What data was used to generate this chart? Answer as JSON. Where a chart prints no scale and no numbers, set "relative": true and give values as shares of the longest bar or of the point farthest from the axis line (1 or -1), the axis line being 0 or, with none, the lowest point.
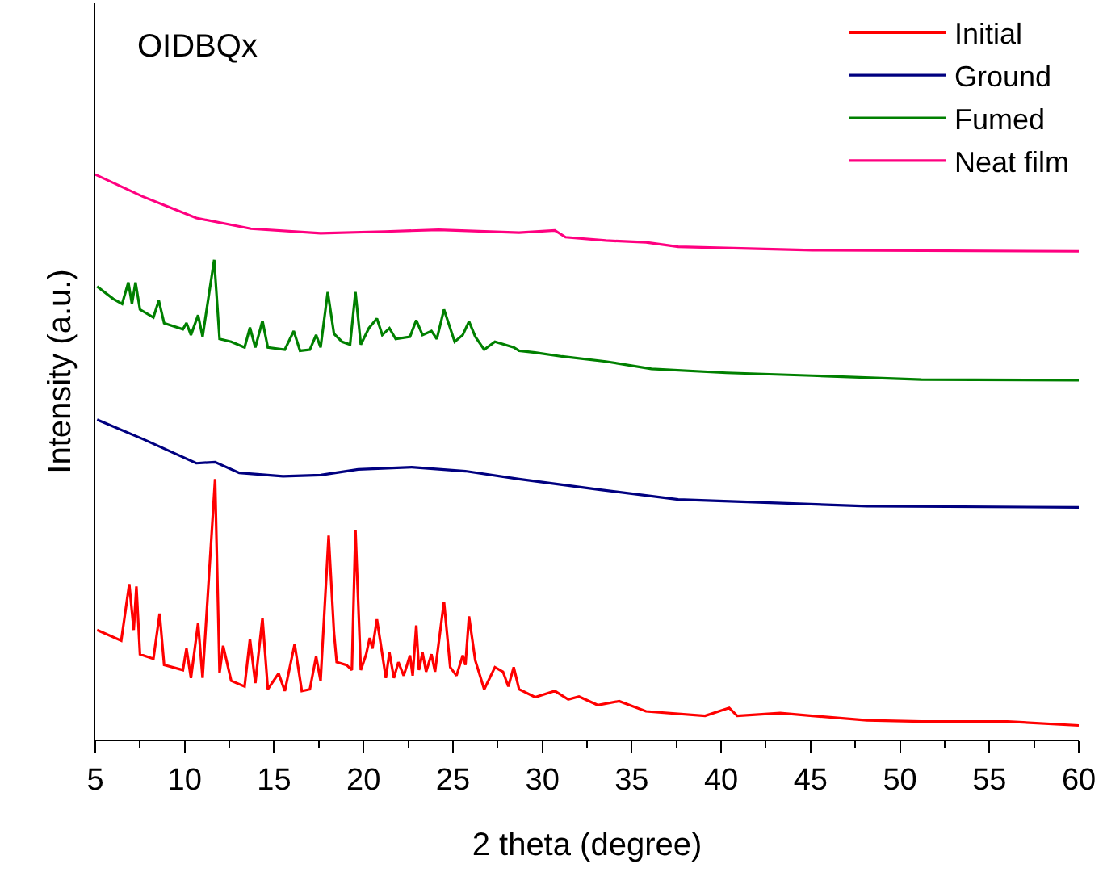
{
  "chart_data": {
    "type": "line",
    "relative": true,
    "xlabel": "2 theta (degree)",
    "ylabel": "Intensity (a.u.)",
    "annotations": [
      "OIDBQx"
    ],
    "xlim": [
      5,
      60
    ],
    "xticks": [
      5,
      {
        "value": 7.5,
        "label": null
      },
      10,
      {
        "value": 12.5,
        "label": null
      },
      15,
      {
        "value": 17.5,
        "label": null
      },
      20,
      {
        "value": 22.5,
        "label": null
      },
      25,
      {
        "value": 27.5,
        "label": null
      },
      30,
      {
        "value": 32.5,
        "label": null
      },
      35,
      {
        "value": 37.5,
        "label": null
      },
      40,
      {
        "value": 42.5,
        "label": null
      },
      45,
      {
        "value": 47.5,
        "label": null
      },
      50,
      {
        "value": 52.5,
        "label": null
      },
      55,
      {
        "value": 57.5,
        "label": null
      },
      60
    ],
    "tick_labels": "x",
    "legend": "top right",
    "marker": "none",
    "line_style": "solid",
    "series": [
      {
        "name": "Initial",
        "color": "#ff0000",
        "x": [
          5.1,
          6.45,
          6.9,
          7.15,
          7.3,
          7.5,
          8.25,
          8.6,
          8.85,
          9.9,
          10.1,
          10.35,
          10.75,
          11.0,
          11.7,
          11.95,
          12.15,
          12.6,
          13.35,
          13.65,
          13.95,
          14.35,
          14.65,
          15.25,
          15.6,
          16.15,
          16.55,
          17.0,
          17.35,
          17.6,
          18.05,
          18.35,
          18.5,
          19.05,
          19.35,
          19.55,
          19.85,
          20.15,
          20.35,
          20.5,
          20.75,
          21.05,
          21.25,
          21.45,
          21.7,
          21.95,
          22.25,
          22.6,
          22.75,
          22.95,
          23.1,
          23.3,
          23.5,
          23.8,
          24.0,
          24.5,
          24.85,
          25.2,
          25.55,
          25.7,
          25.9,
          26.25,
          26.75,
          27.35,
          27.8,
          28.1,
          28.4,
          28.7,
          29.6,
          30.7,
          31.45,
          32.05,
          33.1,
          34.3,
          35.8,
          39.1,
          40.45,
          40.9,
          43.3,
          45.1,
          48.15,
          51.2,
          56.0,
          60
        ],
        "values": [
          0.194,
          0.175,
          0.275,
          0.194,
          0.271,
          0.151,
          0.143,
          0.223,
          0.132,
          0.123,
          0.161,
          0.109,
          0.206,
          0.109,
          0.461,
          0.118,
          0.166,
          0.104,
          0.094,
          0.178,
          0.1,
          0.215,
          0.089,
          0.117,
          0.086,
          0.169,
          0.086,
          0.089,
          0.147,
          0.104,
          0.361,
          0.189,
          0.137,
          0.132,
          0.123,
          0.371,
          0.123,
          0.151,
          0.18,
          0.161,
          0.213,
          0.151,
          0.109,
          0.154,
          0.109,
          0.137,
          0.113,
          0.149,
          0.113,
          0.202,
          0.123,
          0.154,
          0.12,
          0.151,
          0.12,
          0.244,
          0.128,
          0.113,
          0.149,
          0.132,
          0.218,
          0.14,
          0.089,
          0.128,
          0.12,
          0.094,
          0.128,
          0.089,
          0.075,
          0.086,
          0.071,
          0.076,
          0.061,
          0.068,
          0.05,
          0.042,
          0.056,
          0.042,
          0.047,
          0.042,
          0.034,
          0.032,
          0.032,
          0.025
        ]
      },
      {
        "name": "Ground",
        "color": "#000080",
        "x": [
          5.1,
          7.65,
          10.65,
          11.7,
          13.05,
          15.5,
          17.6,
          19.7,
          22.7,
          25.7,
          28.7,
          33.25,
          37.6,
          42.1,
          48.15,
          60
        ],
        "values": [
          0.566,
          0.532,
          0.489,
          0.491,
          0.472,
          0.466,
          0.468,
          0.478,
          0.482,
          0.475,
          0.461,
          0.442,
          0.425,
          0.42,
          0.413,
          0.411
        ]
      },
      {
        "name": "Fumed",
        "color": "#008000",
        "x": [
          5.1,
          6.0,
          6.5,
          6.85,
          7.05,
          7.25,
          7.5,
          8.25,
          8.55,
          8.85,
          9.9,
          10.1,
          10.35,
          10.75,
          11.0,
          11.65,
          11.95,
          12.6,
          13.35,
          13.65,
          13.95,
          14.35,
          14.65,
          15.6,
          16.1,
          16.45,
          17.0,
          17.35,
          17.6,
          18.0,
          18.35,
          18.8,
          19.25,
          19.55,
          19.85,
          20.3,
          20.75,
          21.05,
          21.45,
          21.8,
          22.6,
          22.95,
          23.3,
          23.8,
          24.1,
          24.5,
          25.1,
          25.55,
          25.9,
          26.25,
          26.75,
          27.35,
          28.4,
          28.7,
          29.6,
          31.1,
          33.55,
          36.1,
          40.3,
          45.1,
          51.2,
          60
        ],
        "values": [
          0.802,
          0.78,
          0.771,
          0.809,
          0.771,
          0.809,
          0.761,
          0.747,
          0.777,
          0.737,
          0.726,
          0.737,
          0.716,
          0.751,
          0.713,
          0.849,
          0.709,
          0.704,
          0.694,
          0.729,
          0.694,
          0.741,
          0.694,
          0.69,
          0.723,
          0.688,
          0.69,
          0.716,
          0.694,
          0.792,
          0.718,
          0.704,
          0.699,
          0.792,
          0.699,
          0.728,
          0.745,
          0.716,
          0.728,
          0.709,
          0.713,
          0.742,
          0.716,
          0.723,
          0.709,
          0.761,
          0.704,
          0.716,
          0.74,
          0.713,
          0.69,
          0.704,
          0.694,
          0.688,
          0.685,
          0.678,
          0.669,
          0.656,
          0.649,
          0.644,
          0.637,
          0.636
        ]
      },
      {
        "name": "Neat film",
        "color": "#ff0080",
        "x": [
          5.0,
          7.65,
          10.65,
          13.7,
          17.6,
          21.2,
          24.2,
          28.7,
          30.7,
          31.3,
          33.55,
          35.8,
          37.6,
          45.1,
          60
        ],
        "values": [
          1.0,
          0.961,
          0.923,
          0.904,
          0.896,
          0.899,
          0.902,
          0.897,
          0.901,
          0.889,
          0.883,
          0.88,
          0.872,
          0.866,
          0.864
        ]
      }
    ]
  }
}
